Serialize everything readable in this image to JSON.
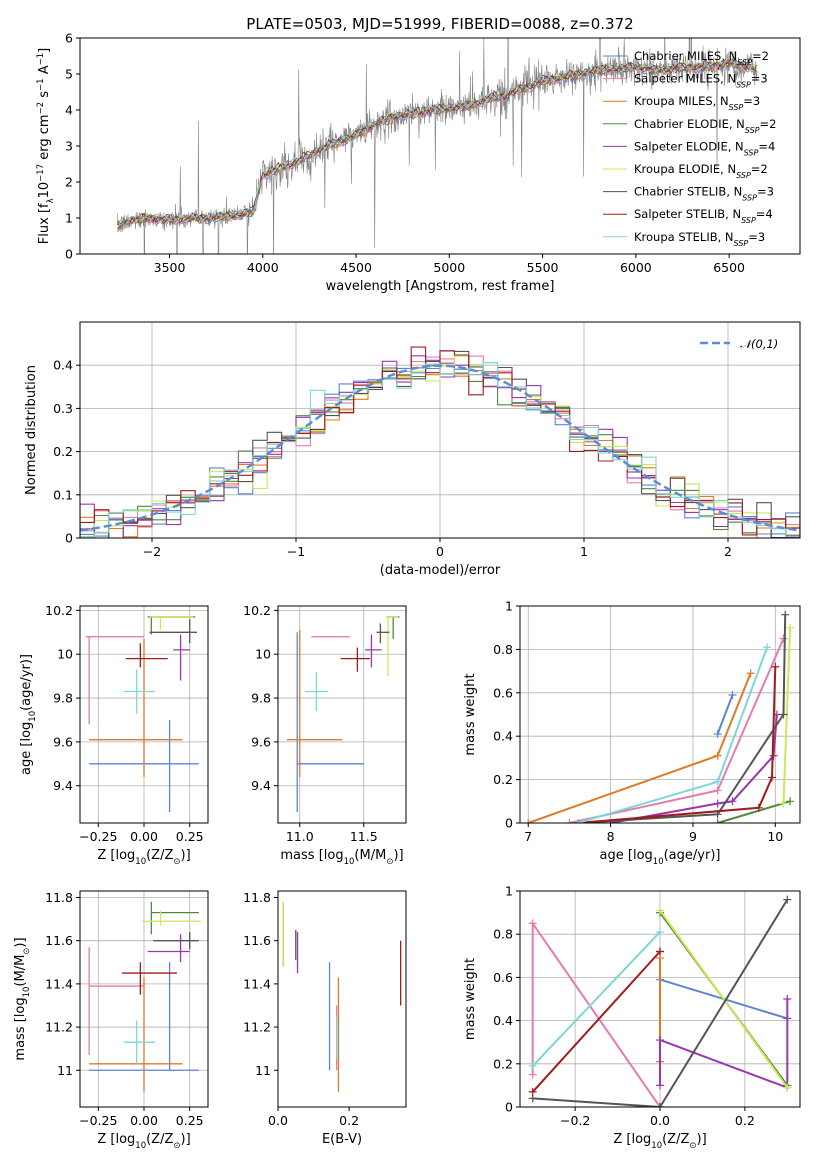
{
  "figure": {
    "title": "PLATE=0503, MJD=51999, FIBERID=0088, z=0.372"
  },
  "models": [
    {
      "name": "Chabrier MILES",
      "nssp": "2",
      "color": "#5d85d3"
    },
    {
      "name": "Salpeter MILES",
      "nssp": "3",
      "color": "#e57bb0"
    },
    {
      "name": "Kroupa MILES",
      "nssp": "3",
      "color": "#e07a26"
    },
    {
      "name": "Chabrier ELODIE",
      "nssp": "2",
      "color": "#4e8a3e"
    },
    {
      "name": "Salpeter ELODIE",
      "nssp": "4",
      "color": "#9b35b0"
    },
    {
      "name": "Kroupa ELODIE",
      "nssp": "2",
      "color": "#c9e85a"
    },
    {
      "name": "Chabrier STELIB",
      "nssp": "3",
      "color": "#555555"
    },
    {
      "name": "Salpeter STELIB",
      "nssp": "4",
      "color": "#a01c1c"
    },
    {
      "name": "Kroupa STELIB",
      "nssp": "3",
      "color": "#7dd6d8"
    }
  ],
  "chart_data": [
    {
      "id": "spectrum",
      "type": "line",
      "xlabel": "wavelength [Angstrom, rest frame]",
      "ylabel": "Flux [f$_\\lambda$10$^{-17}$ erg cm$^{-2}$ s$^{-1}$ A$^{-1}$]",
      "xlim": [
        3020,
        6880
      ],
      "ylim": [
        0,
        6
      ],
      "xticks": [
        3500,
        4000,
        4500,
        5000,
        5500,
        6000,
        6500
      ],
      "yticks": [
        0,
        1,
        2,
        3,
        4,
        5,
        6
      ],
      "data_color": "#808080",
      "continuum_x": [
        3220,
        3300,
        3400,
        3500,
        3600,
        3700,
        3800,
        3900,
        3950,
        4000,
        4100,
        4200,
        4300,
        4400,
        4500,
        4600,
        4700,
        4800,
        4900,
        5000,
        5100,
        5200,
        5300,
        5400,
        5500,
        5600,
        5700,
        5800,
        5900,
        6000,
        6100,
        6200,
        6300,
        6400,
        6500,
        6600,
        6650
      ],
      "continuum_y": [
        0.75,
        0.95,
        1.0,
        0.95,
        0.98,
        1.0,
        1.05,
        1.1,
        1.2,
        2.2,
        2.4,
        2.6,
        2.9,
        3.1,
        3.3,
        3.6,
        3.8,
        3.9,
        4.0,
        4.05,
        4.1,
        4.3,
        4.4,
        4.6,
        4.8,
        4.9,
        5.0,
        5.1,
        5.15,
        5.2,
        5.1,
        5.15,
        5.2,
        5.2,
        5.3,
        5.2,
        5.1
      ],
      "legend": "top-right"
    },
    {
      "id": "residuals",
      "type": "histogram",
      "xlabel": "(data-model)/error",
      "ylabel": "Normed distribution",
      "xlim": [
        -2.5,
        2.5
      ],
      "ylim": [
        0,
        0.5
      ],
      "xticks": [
        -2,
        -1,
        0,
        1,
        2
      ],
      "yticks": [
        0.0,
        0.1,
        0.2,
        0.3,
        0.4
      ],
      "grid": true,
      "reference_curve": {
        "label": "$\\mathcal{N}(0,1)$",
        "mu": 0,
        "sigma": 1,
        "color": "#5b8ad8"
      },
      "legend": "top-right"
    },
    {
      "id": "age-vs-Z",
      "type": "errorbar",
      "xlabel": "Z [log$_{10}$(Z/Z$_\\odot$)]",
      "ylabel": "age  [log$_{10}$(age/yr)]",
      "xlim": [
        -0.35,
        0.35
      ],
      "ylim": [
        9.23,
        10.22
      ],
      "xticks": [
        -0.25,
        0.0,
        0.25
      ],
      "xticklabels": [
        "−0.25",
        "0.00",
        "0.25"
      ],
      "yticks": [
        9.4,
        9.6,
        9.8,
        10.0,
        10.2
      ],
      "grid": true,
      "points": [
        {
          "x": 0.14,
          "y": 9.5,
          "xerr": [
            0.44,
            0.16
          ],
          "yerr": [
            0.22,
            0.2
          ],
          "color": "#5d85d3"
        },
        {
          "x": -0.3,
          "y": 10.08,
          "xerr": [
            0.02,
            0.3
          ],
          "yerr": [
            0.4,
            0.0
          ],
          "color": "#e57bb0"
        },
        {
          "x": 0.0,
          "y": 9.61,
          "xerr": [
            0.3,
            0.21
          ],
          "yerr": [
            0.17,
            0.46
          ],
          "color": "#e07a26"
        },
        {
          "x": 0.04,
          "y": 10.17,
          "xerr": [
            0.02,
            0.24
          ],
          "yerr": [
            0.08,
            0.0
          ],
          "color": "#4e8a3e"
        },
        {
          "x": 0.2,
          "y": 10.02,
          "xerr": [
            0.04,
            0.05
          ],
          "yerr": [
            0.14,
            0.07
          ],
          "color": "#9b35b0"
        },
        {
          "x": 0.09,
          "y": 10.17,
          "xerr": [
            0.06,
            0.18
          ],
          "yerr": [
            0.06,
            0.0
          ],
          "color": "#c9e85a"
        },
        {
          "x": 0.25,
          "y": 10.1,
          "xerr": [
            0.22,
            0.04
          ],
          "yerr": [
            0.05,
            0.06
          ],
          "color": "#555555"
        },
        {
          "x": -0.02,
          "y": 9.98,
          "xerr": [
            0.08,
            0.15
          ],
          "yerr": [
            0.04,
            0.07
          ],
          "color": "#a01c1c"
        },
        {
          "x": -0.04,
          "y": 9.83,
          "xerr": [
            0.07,
            0.1
          ],
          "yerr": [
            0.1,
            0.1
          ],
          "color": "#7dd6d8"
        }
      ]
    },
    {
      "id": "age-vs-mass",
      "type": "errorbar",
      "xlabel": "mass [log$_{10}$(M/M$_\\odot$)]",
      "xlim": [
        10.83,
        11.83
      ],
      "ylim": [
        9.23,
        10.22
      ],
      "xticks": [
        11.0,
        11.5
      ],
      "xticklabels": [
        "11.0",
        "11.5"
      ],
      "yticks": [
        9.4,
        9.6,
        9.8,
        10.0,
        10.2
      ],
      "grid": true,
      "points": [
        {
          "x": 10.98,
          "y": 9.5,
          "xerr": [
            0.0,
            0.52
          ],
          "yerr": [
            0.22,
            0.6
          ],
          "color": "#5d85d3"
        },
        {
          "x": 11.39,
          "y": 10.08,
          "xerr": [
            0.3,
            0.0
          ],
          "yerr": [
            0.0,
            0.0
          ],
          "color": "#e57bb0"
        },
        {
          "x": 11.0,
          "y": 9.61,
          "xerr": [
            0.1,
            0.33
          ],
          "yerr": [
            0.17,
            0.5
          ],
          "color": "#e07a26"
        },
        {
          "x": 11.73,
          "y": 10.17,
          "xerr": [
            0.05,
            0.05
          ],
          "yerr": [
            0.1,
            0.0
          ],
          "color": "#4e8a3e"
        },
        {
          "x": 11.56,
          "y": 10.02,
          "xerr": [
            0.05,
            0.08
          ],
          "yerr": [
            0.08,
            0.07
          ],
          "color": "#9b35b0"
        },
        {
          "x": 11.69,
          "y": 10.17,
          "xerr": [
            0.02,
            0.08
          ],
          "yerr": [
            0.27,
            0.0
          ],
          "color": "#c9e85a"
        },
        {
          "x": 11.63,
          "y": 10.1,
          "xerr": [
            0.03,
            0.07
          ],
          "yerr": [
            0.05,
            0.04
          ],
          "color": "#555555"
        },
        {
          "x": 11.45,
          "y": 9.98,
          "xerr": [
            0.13,
            0.1
          ],
          "yerr": [
            0.06,
            0.05
          ],
          "color": "#a01c1c"
        },
        {
          "x": 11.13,
          "y": 9.83,
          "xerr": [
            0.09,
            0.09
          ],
          "yerr": [
            0.09,
            0.09
          ],
          "color": "#7dd6d8"
        }
      ]
    },
    {
      "id": "massweight-vs-age",
      "type": "line",
      "xlabel": "age  [log$_{10}$(age/yr)]",
      "ylabel": "mass weight",
      "xlim": [
        6.9,
        10.3
      ],
      "ylim": [
        0,
        1
      ],
      "xticks": [
        7,
        8,
        9,
        10
      ],
      "yticks": [
        0.0,
        0.2,
        0.4,
        0.6,
        0.8,
        1.0
      ],
      "grid": true,
      "series": [
        {
          "color": "#5d85d3",
          "x": [
            9.3,
            9.48
          ],
          "y": [
            0.41,
            0.59
          ]
        },
        {
          "color": "#e57bb0",
          "x": [
            7.5,
            9.3,
            10.1
          ],
          "y": [
            0.0,
            0.15,
            0.85
          ]
        },
        {
          "color": "#e07a26",
          "x": [
            7.0,
            9.3,
            9.7
          ],
          "y": [
            0.0,
            0.31,
            0.69
          ]
        },
        {
          "color": "#4e8a3e",
          "x": [
            9.3,
            10.18
          ],
          "y": [
            0.0,
            0.1
          ]
        },
        {
          "color": "#9b35b0",
          "x": [
            8.0,
            9.3,
            9.48,
            9.98,
            10.02
          ],
          "y": [
            0.0,
            0.09,
            0.1,
            0.31,
            0.5
          ]
        },
        {
          "color": "#c9e85a",
          "x": [
            10.1,
            10.18
          ],
          "y": [
            0.09,
            0.9
          ]
        },
        {
          "color": "#555555",
          "x": [
            7.6,
            9.3,
            10.1,
            10.12
          ],
          "y": [
            0.0,
            0.04,
            0.5,
            0.96
          ]
        },
        {
          "color": "#a01c1c",
          "x": [
            7.6,
            9.8,
            9.96,
            10.0
          ],
          "y": [
            0.0,
            0.07,
            0.21,
            0.72
          ]
        },
        {
          "color": "#7dd6d8",
          "x": [
            7.6,
            9.3,
            9.9
          ],
          "y": [
            0.0,
            0.19,
            0.81
          ]
        }
      ]
    },
    {
      "id": "mass-vs-Z",
      "type": "errorbar",
      "xlabel": "Z [log$_{10}$(Z/Z$_\\odot$)]",
      "ylabel": "mass [log$_{10}$(M/M$_\\odot$)]",
      "xlim": [
        -0.35,
        0.35
      ],
      "ylim": [
        10.83,
        11.83
      ],
      "xticks": [
        -0.25,
        0.0,
        0.25
      ],
      "xticklabels": [
        "−0.25",
        "0.00",
        "0.25"
      ],
      "yticks": [
        11.0,
        11.2,
        11.4,
        11.6,
        11.8
      ],
      "grid": true,
      "points": [
        {
          "x": 0.14,
          "y": 11.0,
          "xerr": [
            0.44,
            0.16
          ],
          "yerr": [
            0.0,
            0.5
          ],
          "color": "#5d85d3"
        },
        {
          "x": -0.3,
          "y": 11.39,
          "xerr": [
            0.0,
            0.3
          ],
          "yerr": [
            0.32,
            0.18
          ],
          "color": "#e57bb0"
        },
        {
          "x": 0.0,
          "y": 11.03,
          "xerr": [
            0.3,
            0.21
          ],
          "yerr": [
            0.13,
            0.4
          ],
          "color": "#e07a26"
        },
        {
          "x": 0.04,
          "y": 11.73,
          "xerr": [
            0.0,
            0.26
          ],
          "yerr": [
            0.1,
            0.05
          ],
          "color": "#4e8a3e"
        },
        {
          "x": 0.2,
          "y": 11.55,
          "xerr": [
            0.18,
            0.05
          ],
          "yerr": [
            0.05,
            0.08
          ],
          "color": "#9b35b0"
        },
        {
          "x": 0.09,
          "y": 11.69,
          "xerr": [
            0.1,
            0.22
          ],
          "yerr": [
            0.02,
            0.05
          ],
          "color": "#c9e85a"
        },
        {
          "x": 0.25,
          "y": 11.6,
          "xerr": [
            0.2,
            0.05
          ],
          "yerr": [
            0.04,
            0.04
          ],
          "color": "#555555"
        },
        {
          "x": -0.02,
          "y": 11.45,
          "xerr": [
            0.1,
            0.2
          ],
          "yerr": [
            0.1,
            0.05
          ],
          "color": "#a01c1c"
        },
        {
          "x": -0.04,
          "y": 11.13,
          "xerr": [
            0.07,
            0.1
          ],
          "yerr": [
            0.1,
            0.1
          ],
          "color": "#7dd6d8"
        }
      ]
    },
    {
      "id": "mass-vs-EBV",
      "type": "errorbar",
      "xlabel": "E(B-V)",
      "xlim": [
        0.0,
        0.36
      ],
      "ylim": [
        10.83,
        11.83
      ],
      "xticks": [
        0.0,
        0.2
      ],
      "xticklabels": [
        "0.0",
        "0.2"
      ],
      "yticks": [
        11.0,
        11.2,
        11.4,
        11.6,
        11.8
      ],
      "points": [
        {
          "x": 0.145,
          "y": 11.22,
          "yerr": [
            0.22,
            0.28
          ],
          "color": "#5d85d3"
        },
        {
          "x": 0.165,
          "y": 11.2,
          "yerr": [
            0.2,
            0.1
          ],
          "color": "#e57bb0"
        },
        {
          "x": 0.17,
          "y": 11.2,
          "yerr": [
            0.3,
            0.23
          ],
          "color": "#e07a26"
        },
        {
          "x": 0.015,
          "y": 11.66,
          "yerr": [
            0.18,
            0.12
          ],
          "color": "#4e8a3e"
        },
        {
          "x": 0.055,
          "y": 11.55,
          "yerr": [
            0.1,
            0.09
          ],
          "color": "#9b35b0"
        },
        {
          "x": 0.015,
          "y": 11.63,
          "yerr": [
            0.15,
            0.15
          ],
          "color": "#c9e85a"
        },
        {
          "x": 0.05,
          "y": 11.56,
          "yerr": [
            0.05,
            0.09
          ],
          "color": "#555555"
        },
        {
          "x": 0.345,
          "y": 11.45,
          "yerr": [
            0.15,
            0.15
          ],
          "color": "#a01c1c"
        },
        {
          "x": 0.165,
          "y": 11.15,
          "yerr": [
            0.1,
            0.1
          ],
          "color": "#7dd6d8"
        }
      ]
    },
    {
      "id": "massweight-vs-Z",
      "type": "line",
      "xlabel": "Z [log$_{10}$(Z/Z$_\\odot$)]",
      "ylabel": "mass weight",
      "xlim": [
        -0.33,
        0.33
      ],
      "ylim": [
        0,
        1
      ],
      "xticks": [
        -0.2,
        0.0,
        0.2
      ],
      "xticklabels": [
        "−0.2",
        "0.0",
        "0.2"
      ],
      "yticks": [
        0.0,
        0.2,
        0.4,
        0.6,
        0.8,
        1.0
      ],
      "grid": true,
      "series": [
        {
          "color": "#5d85d3",
          "x": [
            0.0,
            0.3
          ],
          "y": [
            0.59,
            0.41
          ]
        },
        {
          "color": "#e57bb0",
          "x": [
            -0.3,
            -0.3,
            0.0,
            0.0
          ],
          "y": [
            0.15,
            0.85,
            0.0,
            0.0
          ]
        },
        {
          "color": "#e07a26",
          "x": [
            0.0,
            0.0
          ],
          "y": [
            0.21,
            0.69
          ]
        },
        {
          "color": "#4e8a3e",
          "x": [
            0.0,
            0.3
          ],
          "y": [
            0.9,
            0.1
          ]
        },
        {
          "color": "#9b35b0",
          "x": [
            0.0,
            0.0,
            0.3,
            0.3,
            0.3
          ],
          "y": [
            0.1,
            0.31,
            0.09,
            0.41,
            0.5
          ]
        },
        {
          "color": "#c9e85a",
          "x": [
            0.0,
            0.3
          ],
          "y": [
            0.91,
            0.09
          ]
        },
        {
          "color": "#555555",
          "x": [
            -0.3,
            0.0,
            0.3
          ],
          "y": [
            0.04,
            0.0,
            0.96
          ]
        },
        {
          "color": "#a01c1c",
          "x": [
            -0.3,
            0.0,
            0.0
          ],
          "y": [
            0.07,
            0.72,
            0.72
          ]
        },
        {
          "color": "#7dd6d8",
          "x": [
            -0.3,
            0.0
          ],
          "y": [
            0.19,
            0.81
          ]
        }
      ]
    }
  ]
}
